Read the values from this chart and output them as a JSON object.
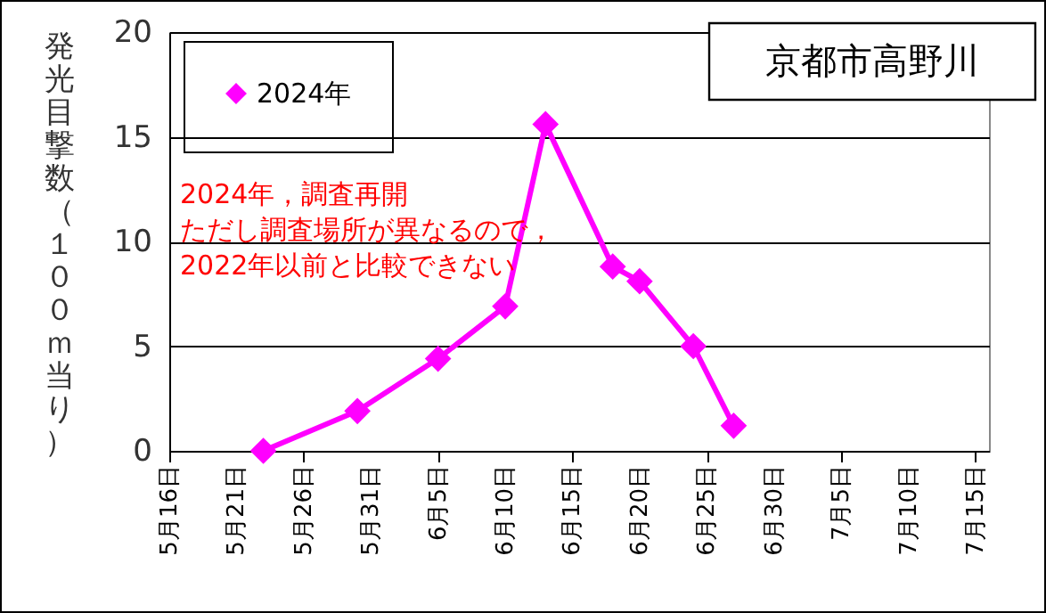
{
  "chart_data": {
    "type": "line",
    "title": "京都市高野川",
    "ylabel": "発光目撃数（１００ｍ当り）",
    "annotations": [
      "2024年，調査再開",
      "ただし調査場所が異なるので，",
      "2022年以前と比較できない"
    ],
    "x": [
      "--05-23",
      "--05-30",
      "--06-05",
      "--06-10",
      "--06-13",
      "--06-18",
      "--06-20",
      "--06-24",
      "--06-27"
    ],
    "series": [
      {
        "name": "2024年",
        "color": "#ff00ff",
        "values": [
          0,
          1.9,
          4.4,
          6.9,
          15.6,
          8.8,
          8.1,
          5.0,
          1.2
        ]
      }
    ],
    "xlim": [
      "--05-16",
      "--07-16"
    ],
    "xticks": [
      {
        "value": "--05-16",
        "label": "5月16日"
      },
      {
        "value": "--05-21",
        "label": "5月21日"
      },
      {
        "value": "--05-26",
        "label": "5月26日"
      },
      {
        "value": "--05-31",
        "label": "5月31日"
      },
      {
        "value": "--06-05",
        "label": "6月5日"
      },
      {
        "value": "--06-10",
        "label": "6月10日"
      },
      {
        "value": "--06-15",
        "label": "6月15日"
      },
      {
        "value": "--06-20",
        "label": "6月20日"
      },
      {
        "value": "--06-25",
        "label": "6月25日"
      },
      {
        "value": "--06-30",
        "label": "6月30日"
      },
      {
        "value": "--07-05",
        "label": "7月5日"
      },
      {
        "value": "--07-10",
        "label": "7月10日"
      },
      {
        "value": "--07-15",
        "label": "7月15日"
      }
    ],
    "ylim": [
      0,
      20
    ],
    "yticks": [
      0,
      5,
      10,
      15,
      20
    ],
    "grid": "y",
    "legend": "top left",
    "marker": "diamond",
    "line_style": "solid"
  }
}
